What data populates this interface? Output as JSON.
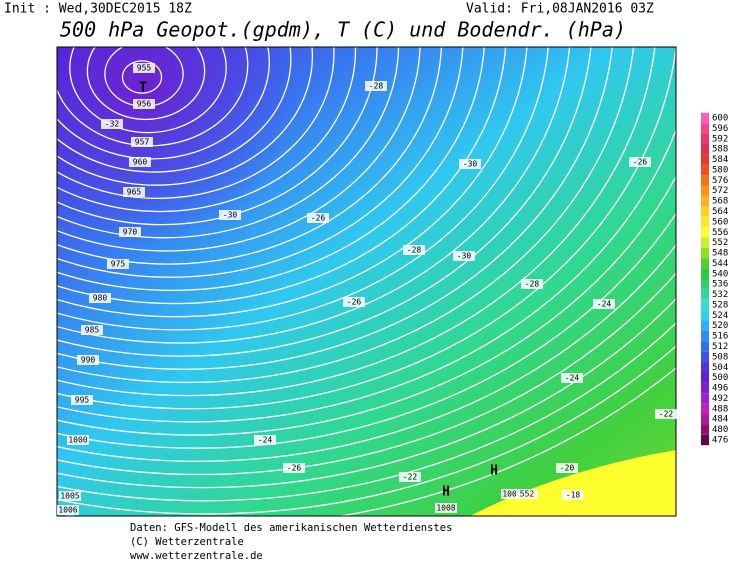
{
  "header": {
    "init": "Init : Wed,30DEC2015 18Z",
    "valid": "Valid: Fri,08JAN2016 03Z",
    "title": "500 hPa Geopot.(gpdm), T (C) und Bodendr. (hPa)"
  },
  "legend": {
    "ticks": [
      600,
      596,
      592,
      588,
      584,
      580,
      576,
      572,
      568,
      564,
      560,
      556,
      552,
      548,
      544,
      540,
      536,
      532,
      528,
      524,
      520,
      516,
      512,
      508,
      504,
      500,
      496,
      492,
      488,
      484,
      480,
      476
    ],
    "colors": [
      "#ff5fb0",
      "#f8448e",
      "#f03270",
      "#e02e50",
      "#e83828",
      "#f05020",
      "#f87018",
      "#ff9018",
      "#ffb020",
      "#ffd020",
      "#ffe828",
      "#ffff30",
      "#c8f028",
      "#90e020",
      "#50d028",
      "#30c840",
      "#30d070",
      "#30d8a0",
      "#30e0d0",
      "#30d0f0",
      "#30b0f8",
      "#3090f8",
      "#3070f0",
      "#4050e8",
      "#5030e0",
      "#6020d8",
      "#8020d0",
      "#a020c8",
      "#c020c0",
      "#b01898",
      "#901070",
      "#600848"
    ]
  },
  "map": {
    "labels": [
      "T",
      "955",
      "956",
      "957",
      "960",
      "965",
      "970",
      "975",
      "980",
      "985",
      "990",
      "995",
      "1000",
      "1005",
      "1006",
      "-32",
      "-30",
      "-30",
      "-30",
      "-28",
      "-28",
      "-28",
      "-26",
      "-26",
      "-26",
      "-26",
      "-24",
      "-24",
      "-24",
      "-22",
      "-22",
      "-20",
      "-18",
      "H",
      "H",
      "1008",
      "1006",
      "552"
    ]
  },
  "footer": {
    "lines": [
      "Daten: GFS-Modell des amerikanischen Wetterdienstes",
      "(C) Wetterzentrale",
      "www.wetterzentrale.de"
    ]
  }
}
